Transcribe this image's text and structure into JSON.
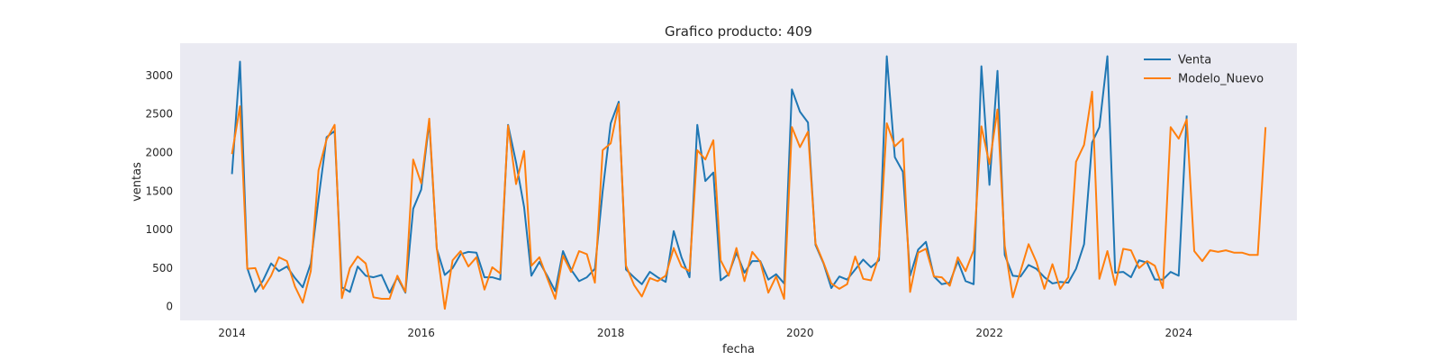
{
  "chart_data": {
    "type": "line",
    "title": "Grafico producto: 409",
    "xlabel": "fecha",
    "ylabel": "ventas",
    "xlim": [
      "2013-06-15",
      "2025-04-01"
    ],
    "ylim": [
      -180,
      3420
    ],
    "x_ticks": [
      "2014",
      "2016",
      "2018",
      "2020",
      "2022",
      "2024"
    ],
    "y_ticks": [
      0,
      500,
      1000,
      1500,
      2000,
      2500,
      3000
    ],
    "grid": false,
    "legend_position": "top-right",
    "background": "#eaeaf2",
    "series": [
      {
        "name": "Venta",
        "color": "#1f77b4",
        "start": "2014-01",
        "values": [
          1720,
          3180,
          500,
          190,
          340,
          560,
          460,
          520,
          370,
          250,
          560,
          1400,
          2200,
          2280,
          250,
          190,
          520,
          400,
          380,
          410,
          180,
          380,
          180,
          1270,
          1520,
          2400,
          750,
          410,
          500,
          680,
          710,
          700,
          380,
          380,
          350,
          2360,
          1870,
          1290,
          400,
          580,
          400,
          200,
          720,
          480,
          330,
          380,
          490,
          1500,
          2380,
          2660,
          480,
          380,
          290,
          450,
          380,
          320,
          980,
          640,
          380,
          2360,
          1630,
          1740,
          340,
          420,
          700,
          440,
          590,
          590,
          350,
          420,
          300,
          2820,
          2530,
          2390,
          800,
          560,
          240,
          390,
          350,
          480,
          610,
          510,
          600,
          3250,
          1940,
          1750,
          400,
          740,
          840,
          390,
          290,
          310,
          590,
          330,
          290,
          3120,
          1580,
          3060,
          670,
          400,
          390,
          540,
          490,
          380,
          300,
          320,
          310,
          490,
          810,
          2130,
          2330,
          3250,
          440,
          450,
          380,
          600,
          570,
          350,
          350,
          450,
          400,
          2480
        ]
      },
      {
        "name": "Modelo_Nuevo",
        "color": "#ff7f0e",
        "start": "2014-01",
        "values": [
          1980,
          2600,
          490,
          500,
          230,
          400,
          640,
          590,
          260,
          50,
          460,
          1770,
          2170,
          2360,
          110,
          500,
          650,
          560,
          120,
          100,
          100,
          400,
          190,
          1910,
          1600,
          2440,
          760,
          -30,
          600,
          720,
          520,
          640,
          220,
          510,
          430,
          2350,
          1590,
          2020,
          530,
          640,
          370,
          100,
          660,
          450,
          720,
          680,
          310,
          2030,
          2120,
          2630,
          530,
          280,
          130,
          370,
          330,
          400,
          760,
          520,
          460,
          2030,
          1910,
          2160,
          600,
          400,
          760,
          330,
          710,
          580,
          180,
          390,
          100,
          2330,
          2070,
          2270,
          820,
          570,
          300,
          230,
          290,
          650,
          360,
          340,
          650,
          2380,
          2080,
          2180,
          190,
          700,
          750,
          390,
          380,
          270,
          640,
          460,
          730,
          2340,
          1850,
          2560,
          790,
          120,
          460,
          810,
          580,
          230,
          550,
          230,
          380,
          1880,
          2100,
          2790,
          360,
          720,
          280,
          750,
          730,
          500,
          590,
          530,
          240,
          2330,
          2180,
          2430,
          720,
          590,
          730,
          710,
          730,
          700,
          700,
          670,
          670,
          2330
        ]
      }
    ]
  }
}
